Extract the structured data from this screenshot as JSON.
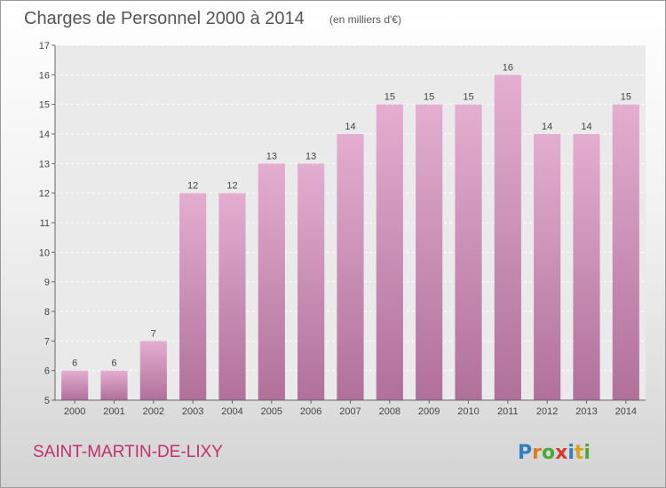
{
  "title": "Charges de Personnel 2000 à 2014",
  "subtitle": "(en milliers d'€)",
  "commune": "SAINT-MARTIN-DE-LIXY",
  "logo": {
    "letters": [
      "P",
      "r",
      "o",
      "x",
      "i",
      "t",
      "i"
    ],
    "colors": [
      "#2f7fc6",
      "#e07a1a",
      "#4aa83a",
      "#d63b2a",
      "#2f7fc6",
      "#e0a21a",
      "#4aa83a"
    ]
  },
  "chart_data": {
    "type": "bar",
    "title": "Charges de Personnel 2000 à 2014",
    "subtitle": "(en milliers d'€)",
    "categories": [
      "2000",
      "2001",
      "2002",
      "2003",
      "2004",
      "2005",
      "2006",
      "2007",
      "2008",
      "2009",
      "2010",
      "2011",
      "2012",
      "2013",
      "2014"
    ],
    "values": [
      6,
      6,
      7,
      12,
      12,
      13,
      13,
      14,
      15,
      15,
      15,
      16,
      14,
      14,
      15
    ],
    "value_labels": [
      "6",
      "6",
      "7",
      "12",
      "12",
      "13",
      "13",
      "14",
      "15",
      "15",
      "15",
      "16",
      "14",
      "14",
      "15"
    ],
    "ylim": [
      5,
      17
    ],
    "yticks": [
      5,
      6,
      7,
      8,
      9,
      10,
      11,
      12,
      13,
      14,
      15,
      16,
      17
    ],
    "ytick_labels": [
      "5",
      "6",
      "7",
      "8",
      "9",
      "10",
      "11",
      "12",
      "13",
      "14",
      "15",
      "16",
      "17"
    ],
    "xlabel": "",
    "ylabel": "",
    "grid": true,
    "legend": "none",
    "bar_color_top": "#e4aed0",
    "bar_color_bottom": "#b0709a"
  }
}
